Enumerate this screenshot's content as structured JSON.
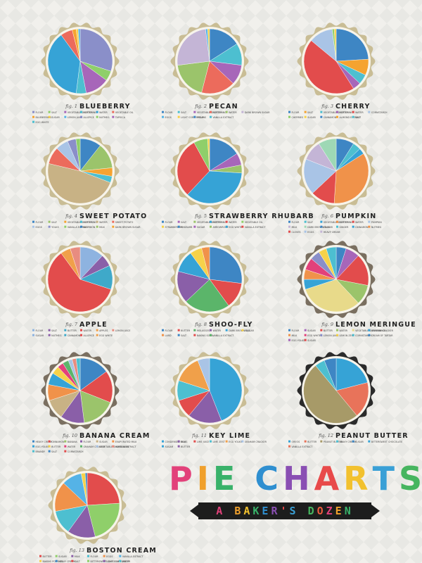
{
  "poster": {
    "title": "PIE CHARTS",
    "subtitle": "A BAKER'S DOZEN",
    "title_colors": [
      "#e2417a",
      "#f0a02c",
      "#39b26a",
      "#2f8fd0",
      "#8a4fb3",
      "#e84a4a",
      "#f2c12e",
      "#3aa0d6",
      "#46b55f",
      "#ec5b3c"
    ],
    "subtitle_colors": [
      "#e2417a",
      "#f0a02c",
      "#f2c12e",
      "#39b26a",
      "#2f8fd0",
      "#8a4fb3",
      "#e84a4a",
      "#3aa0d6",
      "#46b55f",
      "#ec5b3c",
      "#e2417a",
      "#f0a02c",
      "#39b26a",
      "#2f8fd0",
      "#8a4fb3"
    ]
  },
  "chart_data": [
    {
      "type": "pie",
      "fig": "fig. 1",
      "title": "BLUEBERRY",
      "crust": "#c9bd95",
      "legend": [
        "Flour",
        "Salt",
        "Vegetable shortening",
        "Butter",
        "Water",
        "Vegetable Oil",
        "Blueberries",
        "Sugar",
        "Lemon juice",
        "Allspice",
        "Nutmeg",
        "Tapioca",
        "Egg white"
      ],
      "slices": [
        {
          "value": 30,
          "color": "#8a8fc9"
        },
        {
          "value": 5,
          "color": "#8fcf6a"
        },
        {
          "value": 12,
          "color": "#a766b9"
        },
        {
          "value": 5,
          "color": "#4dbfd0"
        },
        {
          "value": 38,
          "color": "#36a3d6"
        },
        {
          "value": 6,
          "color": "#ec6b5c"
        },
        {
          "value": 2,
          "color": "#f5a330"
        },
        {
          "value": 1,
          "color": "#f6d24a"
        },
        {
          "value": 1,
          "color": "#55b3e6"
        }
      ]
    },
    {
      "type": "pie",
      "fig": "fig. 2",
      "title": "PECAN",
      "crust": "#c9bd95",
      "legend": [
        "Flour",
        "Salt",
        "Vegetable shortening",
        "Butter",
        "Water",
        "Dark brown sugar",
        "Eggs",
        "Light corn syrup",
        "Pecans",
        "Vanilla extract"
      ],
      "slices": [
        {
          "value": 16,
          "color": "#3e86c4"
        },
        {
          "value": 11,
          "color": "#4dbfd0"
        },
        {
          "value": 10,
          "color": "#a766b9"
        },
        {
          "value": 17,
          "color": "#ec6b5c"
        },
        {
          "value": 19,
          "color": "#9bc46b"
        },
        {
          "value": 25,
          "color": "#c4b5d6"
        },
        {
          "value": 1,
          "color": "#55b3e6"
        },
        {
          "value": 1,
          "color": "#f6d24a"
        }
      ]
    },
    {
      "type": "pie",
      "fig": "fig. 3",
      "title": "CHERRY",
      "crust": "#c9bd95",
      "legend": [
        "Flour",
        "Salt",
        "Vegetable shortening",
        "Butter",
        "Water",
        "Cornstarch",
        "Cherries",
        "Sugar",
        "Cinnamon",
        "Almond extract",
        "Salt"
      ],
      "slices": [
        {
          "value": 24,
          "color": "#3e86c4"
        },
        {
          "value": 8,
          "color": "#f5a330"
        },
        {
          "value": 5,
          "color": "#4dbfd0"
        },
        {
          "value": 4,
          "color": "#a766b9"
        },
        {
          "value": 45,
          "color": "#e24c4c"
        },
        {
          "value": 12,
          "color": "#a9c4e6"
        },
        {
          "value": 1,
          "color": "#8fcf6a"
        },
        {
          "value": 1,
          "color": "#f6d24a"
        }
      ]
    },
    {
      "type": "pie",
      "fig": "fig. 4",
      "title": "SWEET POTATO",
      "crust": "#c9bd95",
      "legend": [
        "Flour",
        "Salt",
        "Vegetable shortening",
        "Butter",
        "Water",
        "Sweet potato",
        "Eggs",
        "Yolks",
        "Vanilla extract",
        "Bourbon",
        "Milk",
        "Dark brown sugar"
      ],
      "slices": [
        {
          "value": 10,
          "color": "#3e86c4"
        },
        {
          "value": 12,
          "color": "#9bc46b"
        },
        {
          "value": 4,
          "color": "#f5a330"
        },
        {
          "value": 3,
          "color": "#4dbfd0"
        },
        {
          "value": 45,
          "color": "#c8b285"
        },
        {
          "value": 8,
          "color": "#ec6b5c"
        },
        {
          "value": 6,
          "color": "#a9c4e6"
        },
        {
          "value": 4,
          "color": "#8a8fc9"
        },
        {
          "value": 2,
          "color": "#8fcf6a"
        }
      ]
    },
    {
      "type": "pie",
      "fig": "fig. 5",
      "title": "STRAWBERRY RHUBARB",
      "crust": "#c9bd95",
      "legend": [
        "Flour",
        "Salt",
        "Vegetable shortening",
        "Butter",
        "Water",
        "Vegetable oil",
        "Strawberries",
        "Rhubarb",
        "Sugar",
        "Arrowroot",
        "Egg white",
        "Vanilla extract"
      ],
      "slices": [
        {
          "value": 16,
          "color": "#3e86c4"
        },
        {
          "value": 6,
          "color": "#a766b9"
        },
        {
          "value": 4,
          "color": "#9bc46b"
        },
        {
          "value": 36,
          "color": "#36a3d6"
        },
        {
          "value": 30,
          "color": "#e24c4c"
        },
        {
          "value": 7,
          "color": "#8fcf6a"
        },
        {
          "value": 1,
          "color": "#f6d24a"
        }
      ]
    },
    {
      "type": "pie",
      "fig": "fig. 6",
      "title": "PUMPKIN",
      "crust": "#c9bd95",
      "legend": [
        "Flour",
        "Salt",
        "Vegetable shortening",
        "Butter",
        "Water",
        "Pumpkin",
        "Milk",
        "Dark brown sugar",
        "Eggs",
        "Ginger",
        "Cinnamon",
        "Nutmeg",
        "Cloves",
        "Eggs",
        "Heavy cream"
      ],
      "slices": [
        {
          "value": 9,
          "color": "#3e86c4"
        },
        {
          "value": 4,
          "color": "#4dbfd0"
        },
        {
          "value": 3,
          "color": "#36a3d6"
        },
        {
          "value": 35,
          "color": "#f0924a"
        },
        {
          "value": 12,
          "color": "#e24c4c"
        },
        {
          "value": 18,
          "color": "#a9c4e6"
        },
        {
          "value": 10,
          "color": "#c4b5d6"
        },
        {
          "value": 9,
          "color": "#9ed8b5"
        }
      ]
    },
    {
      "type": "pie",
      "fig": "fig. 7",
      "title": "APPLE",
      "crust": "#c9bd95",
      "legend": [
        "Flour",
        "Salt",
        "Butter",
        "Water",
        "Apples",
        "Lemon juice",
        "Sugar",
        "Nutmeg",
        "Cinnamon",
        "Allspice",
        "Egg white"
      ],
      "slices": [
        {
          "value": 12,
          "color": "#8eb3e0"
        },
        {
          "value": 6,
          "color": "#8a5fa8"
        },
        {
          "value": 12,
          "color": "#3fa9c9"
        },
        {
          "value": 60,
          "color": "#e24c4c"
        },
        {
          "value": 5,
          "color": "#f0a04a"
        },
        {
          "value": 5,
          "color": "#e88c80"
        }
      ]
    },
    {
      "type": "pie",
      "fig": "fig. 8",
      "title": "SHOO-FLY",
      "crust": "#c9bd95",
      "legend": [
        "Flour",
        "Butter",
        "Molasses",
        "Water",
        "Dark brown sugar",
        "Egg",
        "Lard",
        "Salt",
        "Baking soda",
        "Vanilla extract"
      ],
      "slices": [
        {
          "value": 27,
          "color": "#3e86c4"
        },
        {
          "value": 13,
          "color": "#e24c4c"
        },
        {
          "value": 23,
          "color": "#5bb56a"
        },
        {
          "value": 16,
          "color": "#8a5fa8"
        },
        {
          "value": 11,
          "color": "#36a3d6"
        },
        {
          "value": 6,
          "color": "#f6d24a"
        },
        {
          "value": 4,
          "color": "#f0924a"
        }
      ]
    },
    {
      "type": "pie",
      "fig": "fig. 9",
      "title": "LEMON MERINGUE",
      "crust": "#7a6f60",
      "legend": [
        "Flour",
        "Sugar",
        "Butter",
        "Water",
        "Vegetable shortening",
        "Graham cracker",
        "Milk",
        "Egg whites",
        "Lemon juice",
        "Lemon zest",
        "Cornstarch",
        "Cream of tartar",
        "Egg yolks",
        "Sugar"
      ],
      "slices": [
        {
          "value": 5,
          "color": "#3e86c4"
        },
        {
          "value": 7,
          "color": "#a766b9"
        },
        {
          "value": 16,
          "color": "#e24c4c"
        },
        {
          "value": 10,
          "color": "#9bc46b"
        },
        {
          "value": 32,
          "color": "#e8da8a"
        },
        {
          "value": 5,
          "color": "#36a3d6"
        },
        {
          "value": 5,
          "color": "#f0924a"
        },
        {
          "value": 6,
          "color": "#e2417a"
        },
        {
          "value": 5,
          "color": "#8a8fc9"
        },
        {
          "value": 4,
          "color": "#f6d24a"
        },
        {
          "value": 5,
          "color": "#4dbfd0"
        }
      ]
    },
    {
      "type": "pie",
      "fig": "fig. 10",
      "title": "BANANA CREAM",
      "crust": "#7a6f60",
      "legend": [
        "Heavy cream",
        "Cinnamon",
        "Banana",
        "Flour",
        "Sugar",
        "Evaporated milk",
        "Egg yolks",
        "Butter",
        "Water",
        "Graham cracker",
        "Vegetable shortening",
        "Vanilla extract",
        "Brandy",
        "Salt",
        "Cornstarch"
      ],
      "slices": [
        {
          "value": 15,
          "color": "#3e86c4"
        },
        {
          "value": 16,
          "color": "#e24c4c"
        },
        {
          "value": 17,
          "color": "#9bc46b"
        },
        {
          "value": 12,
          "color": "#8a5fa8"
        },
        {
          "value": 10,
          "color": "#c8b285"
        },
        {
          "value": 8,
          "color": "#f0924a"
        },
        {
          "value": 6,
          "color": "#36a3d6"
        },
        {
          "value": 4,
          "color": "#f6d24a"
        },
        {
          "value": 3,
          "color": "#e2417a"
        },
        {
          "value": 3,
          "color": "#5bb56a"
        },
        {
          "value": 2,
          "color": "#a9c4e6"
        },
        {
          "value": 2,
          "color": "#e88c80"
        },
        {
          "value": 2,
          "color": "#4dbfd0"
        }
      ]
    },
    {
      "type": "pie",
      "fig": "fig. 11",
      "title": "KEY LIME",
      "crust": "#c9bd95",
      "legend": [
        "Condensed milk",
        "Eggs",
        "Lime juice",
        "Lime zest",
        "Egg yolks",
        "Graham cracker",
        "Sugar",
        "Butter"
      ],
      "slices": [
        {
          "value": 44,
          "color": "#36a3d6"
        },
        {
          "value": 17,
          "color": "#8a5fa8"
        },
        {
          "value": 9,
          "color": "#e24c4c"
        },
        {
          "value": 10,
          "color": "#4dbfd0"
        },
        {
          "value": 14,
          "color": "#f0a04a"
        },
        {
          "value": 6,
          "color": "#a9c4e6"
        }
      ]
    },
    {
      "type": "pie",
      "fig": "fig. 12",
      "title": "PEANUT BUTTER",
      "crust": "#2b2b2b",
      "legend": [
        "Oreos",
        "Butter",
        "Peanut butter",
        "Heavy cream",
        "Sugar",
        "Bittersweet chocolate",
        "Vanilla extract"
      ],
      "slices": [
        {
          "value": 21,
          "color": "#36a3d6"
        },
        {
          "value": 18,
          "color": "#e8735a"
        },
        {
          "value": 50,
          "color": "#a79a68"
        },
        {
          "value": 5,
          "color": "#4dbfd0"
        },
        {
          "value": 6,
          "color": "#3e86c4"
        }
      ]
    },
    {
      "type": "pie",
      "fig": "fig. 13",
      "title": "BOSTON CREAM",
      "crust": "#c9bd95",
      "legend": [
        "Butter",
        "Sugar",
        "Milk",
        "Flour",
        "Eggs",
        "Vanilla extract",
        "Baking powder",
        "Heavy cream",
        "Salt",
        "Bittersweet chocolate",
        "Light corn syrup",
        "Water"
      ],
      "slices": [
        {
          "value": 24,
          "color": "#e24c4c"
        },
        {
          "value": 22,
          "color": "#8fcf6a"
        },
        {
          "value": 14,
          "color": "#8a5fa8"
        },
        {
          "value": 12,
          "color": "#4dbfd0"
        },
        {
          "value": 15,
          "color": "#f0924a"
        },
        {
          "value": 10,
          "color": "#55b3e6"
        },
        {
          "value": 2,
          "color": "#f6d24a"
        },
        {
          "value": 1,
          "color": "#3e86c4"
        }
      ]
    }
  ]
}
